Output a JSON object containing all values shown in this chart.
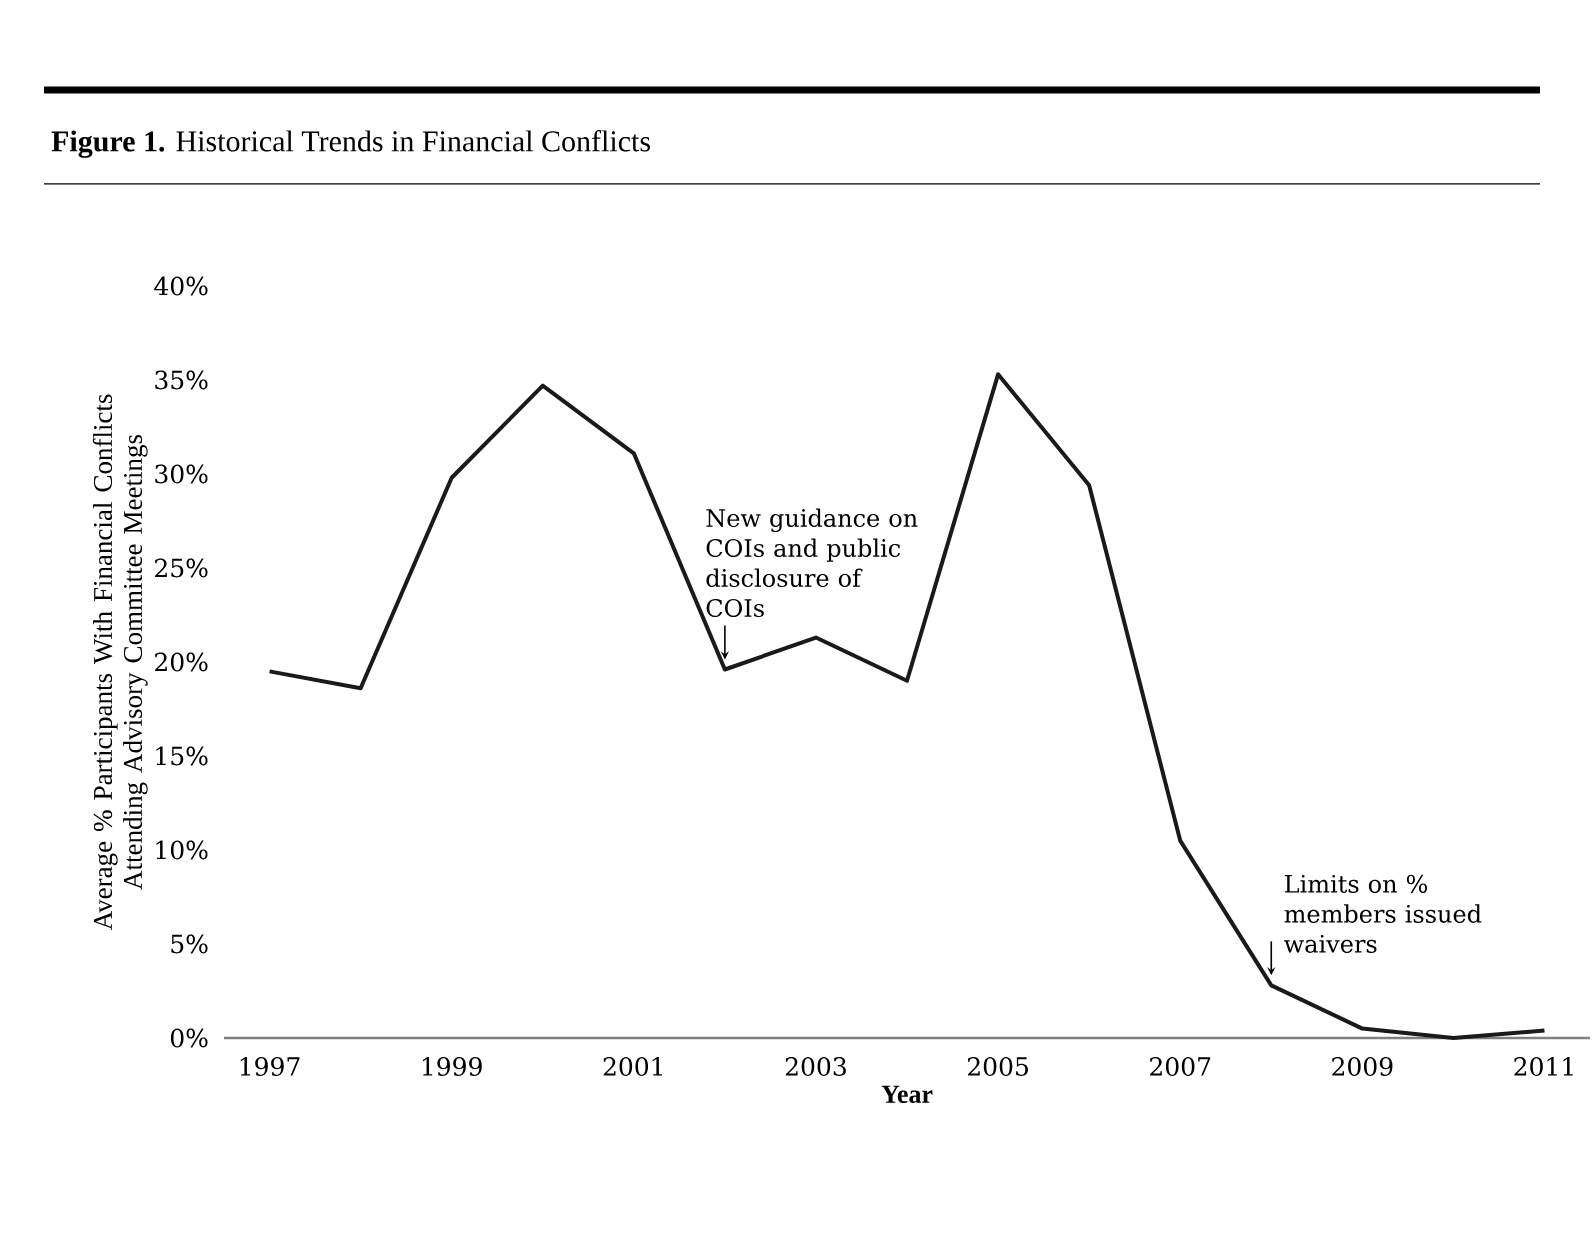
{
  "chart_data": {
    "type": "line",
    "title": "**Figure 1.** Historical Trends in Financial Conflicts",
    "xlabel": "Year",
    "ylabel": "Average % Participants With Financial Conflicts Attending Advisory Committee Meetings",
    "x": [
      1997,
      1998,
      1999,
      2000,
      2001,
      2002,
      2003,
      2004,
      2005,
      2006,
      2007,
      2008,
      2009,
      2010,
      2011
    ],
    "series": [
      {
        "color": "#1a1a1a",
        "values": [
          19.5,
          18.6,
          29.8,
          34.7,
          31.1,
          19.6,
          21.3,
          19.0,
          35.3,
          29.4,
          10.5,
          2.8,
          0.5,
          0.0,
          0.4
        ]
      }
    ],
    "xlim": [
      1996.5,
      2011.5
    ],
    "xticks": [
      1997,
      1999,
      2001,
      2003,
      2005,
      2007,
      2009,
      2011
    ],
    "ylim": [
      0,
      40
    ],
    "yticks": [
      {
        "value": 0,
        "label": "0%"
      },
      {
        "value": 5,
        "label": "5%"
      },
      {
        "value": 10,
        "label": "10%"
      },
      {
        "value": 15,
        "label": "15%"
      },
      {
        "value": 20,
        "label": "20%"
      },
      {
        "value": 25,
        "label": "25%"
      },
      {
        "value": 30,
        "label": "30%"
      },
      {
        "value": 35,
        "label": "35%"
      },
      {
        "value": 40,
        "label": "40%"
      }
    ],
    "marker": "none",
    "line_style": "solid",
    "annotations": [
      {
        "text": "New guidance on COIs and public disclosure of COIs",
        "x": 2002,
        "y": 19.6
      },
      {
        "text": "Limits on % members issued waivers",
        "x": 2008,
        "y": 2.8
      }
    ]
  }
}
